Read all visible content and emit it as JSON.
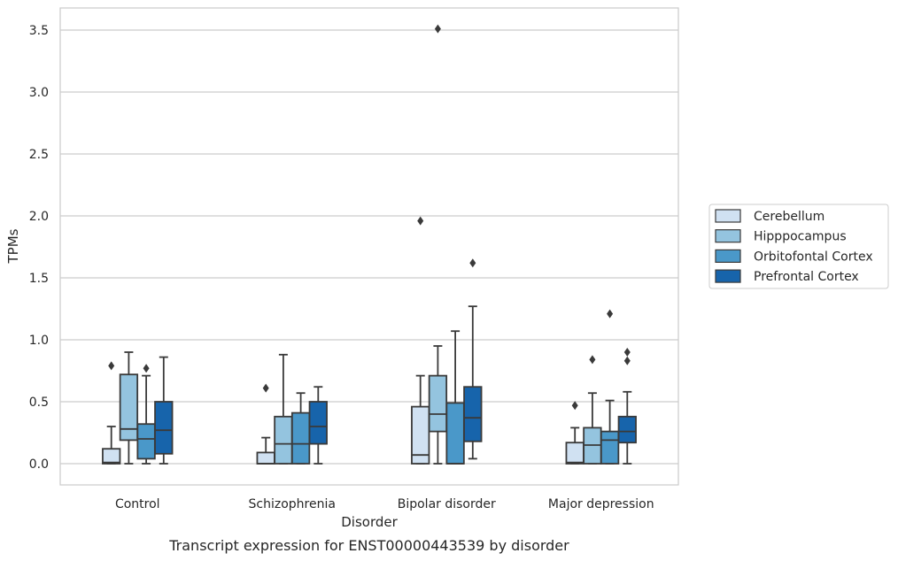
{
  "chart_data": {
    "type": "box",
    "title": "",
    "xlabel": "Disorder",
    "ylabel": "TPMs",
    "caption": "Transcript expression for ENST00000443539 by disorder",
    "ylim": [
      -0.17,
      3.68
    ],
    "yticks": [
      0.0,
      0.5,
      1.0,
      1.5,
      2.0,
      2.5,
      3.0,
      3.5
    ],
    "ytick_labels": [
      "0.0",
      "0.5",
      "1.0",
      "1.5",
      "2.0",
      "2.5",
      "3.0",
      "3.5"
    ],
    "grid": "horizontal",
    "legend_position": "right",
    "categories": [
      "Control",
      "Schizophrenia",
      "Bipolar disorder",
      "Major depression"
    ],
    "series": [
      {
        "name": "Cerebellum",
        "color": "#d0e1f2",
        "boxes": [
          {
            "whislo": 0.0,
            "q1": 0.0,
            "med": 0.01,
            "q3": 0.12,
            "whishi": 0.3,
            "fliers": [
              0.79
            ]
          },
          {
            "whislo": 0.0,
            "q1": 0.0,
            "med": 0.0,
            "q3": 0.09,
            "whishi": 0.21,
            "fliers": [
              0.61
            ]
          },
          {
            "whislo": 0.0,
            "q1": 0.0,
            "med": 0.07,
            "q3": 0.46,
            "whishi": 0.71,
            "fliers": [
              1.96
            ]
          },
          {
            "whislo": 0.0,
            "q1": 0.0,
            "med": 0.01,
            "q3": 0.17,
            "whishi": 0.29,
            "fliers": [
              0.47
            ]
          }
        ]
      },
      {
        "name": "Hipppocampus",
        "color": "#94c4df",
        "boxes": [
          {
            "whislo": 0.0,
            "q1": 0.19,
            "med": 0.28,
            "q3": 0.72,
            "whishi": 0.9,
            "fliers": []
          },
          {
            "whislo": 0.0,
            "q1": 0.0,
            "med": 0.16,
            "q3": 0.38,
            "whishi": 0.88,
            "fliers": []
          },
          {
            "whislo": 0.0,
            "q1": 0.26,
            "med": 0.4,
            "q3": 0.71,
            "whishi": 0.95,
            "fliers": [
              3.51
            ]
          },
          {
            "whislo": 0.0,
            "q1": 0.0,
            "med": 0.15,
            "q3": 0.29,
            "whishi": 0.57,
            "fliers": [
              0.84
            ]
          }
        ]
      },
      {
        "name": "Orbitofontal Cortex",
        "color": "#4a98c9",
        "boxes": [
          {
            "whislo": 0.0,
            "q1": 0.04,
            "med": 0.2,
            "q3": 0.32,
            "whishi": 0.71,
            "fliers": [
              0.77
            ]
          },
          {
            "whislo": 0.0,
            "q1": 0.0,
            "med": 0.16,
            "q3": 0.41,
            "whishi": 0.57,
            "fliers": []
          },
          {
            "whislo": 0.0,
            "q1": 0.0,
            "med": 0.0,
            "q3": 0.49,
            "whishi": 1.07,
            "fliers": []
          },
          {
            "whislo": 0.0,
            "q1": 0.0,
            "med": 0.19,
            "q3": 0.26,
            "whishi": 0.51,
            "fliers": [
              1.21
            ]
          }
        ]
      },
      {
        "name": "Prefrontal Cortex",
        "color": "#1764ab",
        "boxes": [
          {
            "whislo": 0.0,
            "q1": 0.08,
            "med": 0.27,
            "q3": 0.5,
            "whishi": 0.86,
            "fliers": []
          },
          {
            "whislo": 0.0,
            "q1": 0.16,
            "med": 0.3,
            "q3": 0.5,
            "whishi": 0.62,
            "fliers": []
          },
          {
            "whislo": 0.04,
            "q1": 0.18,
            "med": 0.37,
            "q3": 0.62,
            "whishi": 1.27,
            "fliers": [
              1.62
            ]
          },
          {
            "whislo": 0.0,
            "q1": 0.17,
            "med": 0.26,
            "q3": 0.38,
            "whishi": 0.58,
            "fliers": [
              0.83,
              0.9
            ]
          }
        ]
      }
    ]
  }
}
